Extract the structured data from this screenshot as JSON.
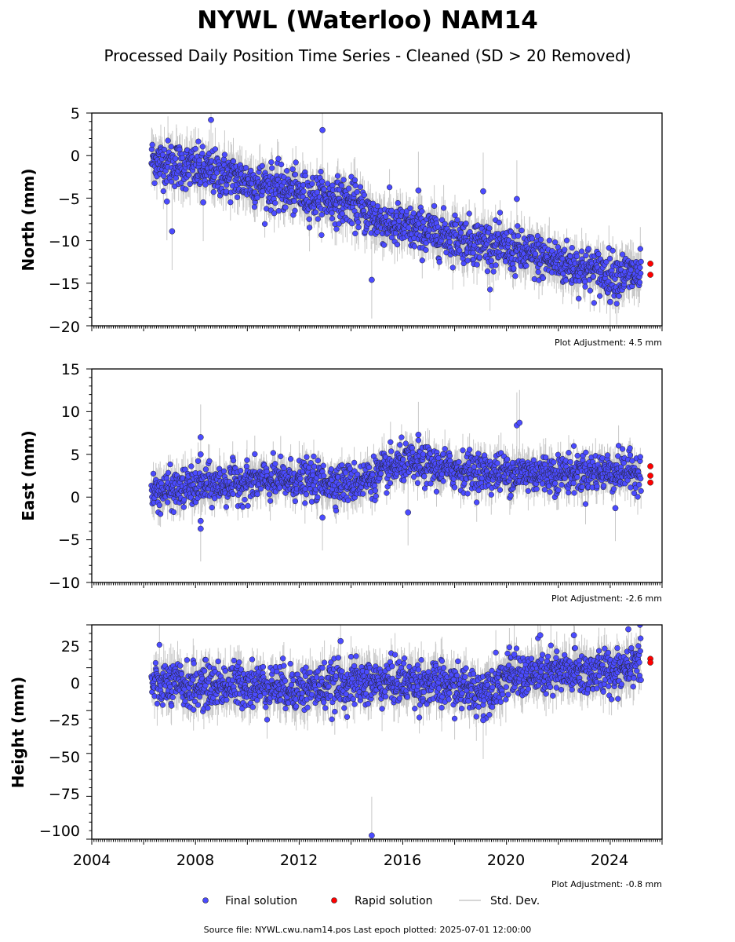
{
  "title": "NYWL (Waterloo) NAM14",
  "subtitle": "Processed Daily Position Time Series - Cleaned (SD > 20 Removed)",
  "footer": "Source file: NYWL.cwu.nam14.pos  Last epoch plotted: 2025-07-01 12:00:00",
  "colors": {
    "final": "#4b4bff",
    "rapid": "#ff0000",
    "stddev": "#c8c8c8",
    "edge": "#222222"
  },
  "legend": {
    "final": "Final solution",
    "rapid": "Rapid solution",
    "stddev": "Std. Dev."
  },
  "x_ticks": [
    "2004",
    "2008",
    "2012",
    "2016",
    "2020",
    "2024"
  ],
  "chart_data": [
    {
      "type": "scatter",
      "ylabel": "North (mm)",
      "xlim": [
        2004,
        2026
      ],
      "ylim": [
        -20,
        5
      ],
      "yticks": [
        "5",
        "0",
        "−5",
        "−10",
        "−15",
        "−20"
      ],
      "adjustment": "Plot Adjustment: 4.5 mm",
      "trend": [
        [
          2006.3,
          -0.5
        ],
        [
          2008,
          -1.5
        ],
        [
          2010,
          -3
        ],
        [
          2012,
          -4.5
        ],
        [
          2014,
          -5.5
        ],
        [
          2015,
          -7.5
        ],
        [
          2016,
          -8.5
        ],
        [
          2018,
          -9.5
        ],
        [
          2020,
          -11
        ],
        [
          2022,
          -12.5
        ],
        [
          2024,
          -14
        ],
        [
          2025.2,
          -14
        ]
      ],
      "noise": 1.3,
      "outliers": [
        [
          2006.9,
          -5.4
        ],
        [
          2007.1,
          -8.9
        ],
        [
          2008.3,
          -5.5
        ],
        [
          2008.6,
          4.2
        ],
        [
          2012.9,
          3.0
        ],
        [
          2014.8,
          -14.6
        ],
        [
          2016.6,
          -4.1
        ],
        [
          2019.1,
          -4.2
        ],
        [
          2020.4,
          -5.1
        ],
        [
          2024.0,
          -17.2
        ]
      ],
      "rapid": [
        [
          2025.55,
          -12.7
        ],
        [
          2025.55,
          -14.0
        ]
      ]
    },
    {
      "type": "scatter",
      "ylabel": "East (mm)",
      "xlim": [
        2004,
        2026
      ],
      "ylim": [
        -10,
        15
      ],
      "yticks": [
        "15",
        "10",
        "5",
        "0",
        "−5",
        "−10"
      ],
      "adjustment": "Plot Adjustment: -2.6 mm",
      "trend": [
        [
          2006.3,
          0.5
        ],
        [
          2008,
          1.2
        ],
        [
          2010,
          1.8
        ],
        [
          2012,
          2.0
        ],
        [
          2014,
          1.6
        ],
        [
          2015,
          2.5
        ],
        [
          2016,
          4.0
        ],
        [
          2018,
          3.2
        ],
        [
          2020,
          2.8
        ],
        [
          2022,
          2.8
        ],
        [
          2024,
          3.0
        ],
        [
          2025.2,
          3.0
        ]
      ],
      "noise": 1.1,
      "outliers": [
        [
          2008.2,
          7.0
        ],
        [
          2008.2,
          5.0
        ],
        [
          2008.2,
          -2.8
        ],
        [
          2008.2,
          -3.7
        ],
        [
          2012.9,
          -2.4
        ],
        [
          2016.2,
          -1.8
        ],
        [
          2016.6,
          7.3
        ],
        [
          2020.4,
          8.4
        ],
        [
          2020.5,
          8.7
        ],
        [
          2024.2,
          -1.3
        ]
      ],
      "rapid": [
        [
          2025.55,
          3.6
        ],
        [
          2025.55,
          2.5
        ],
        [
          2025.55,
          1.7
        ]
      ]
    },
    {
      "type": "scatter",
      "ylabel": "Height (mm)",
      "xlim": [
        2004,
        2026
      ],
      "ylim": [
        -105,
        40
      ],
      "yticks": [
        "25",
        "0",
        "−25",
        "−50",
        "−75",
        "−100"
      ],
      "adjustment": "Plot Adjustment: -0.8 mm",
      "trend": [
        [
          2006.3,
          0
        ],
        [
          2008,
          -2
        ],
        [
          2010,
          0
        ],
        [
          2012,
          -3
        ],
        [
          2014,
          0
        ],
        [
          2016,
          2
        ],
        [
          2018,
          -2
        ],
        [
          2019,
          -5
        ],
        [
          2020,
          5
        ],
        [
          2022,
          7
        ],
        [
          2024,
          8
        ],
        [
          2025.2,
          18
        ]
      ],
      "noise": 7.5,
      "outliers": [
        [
          2013.6,
          29.0
        ],
        [
          2014.8,
          -102.5
        ],
        [
          2020.3,
          20.0
        ],
        [
          2021.3,
          33.0
        ],
        [
          2022.6,
          33.0
        ],
        [
          2024.7,
          37.0
        ],
        [
          2019.1,
          -24.5
        ]
      ],
      "rapid": [
        [
          2025.55,
          17.0
        ],
        [
          2025.55,
          14.5
        ]
      ]
    }
  ]
}
